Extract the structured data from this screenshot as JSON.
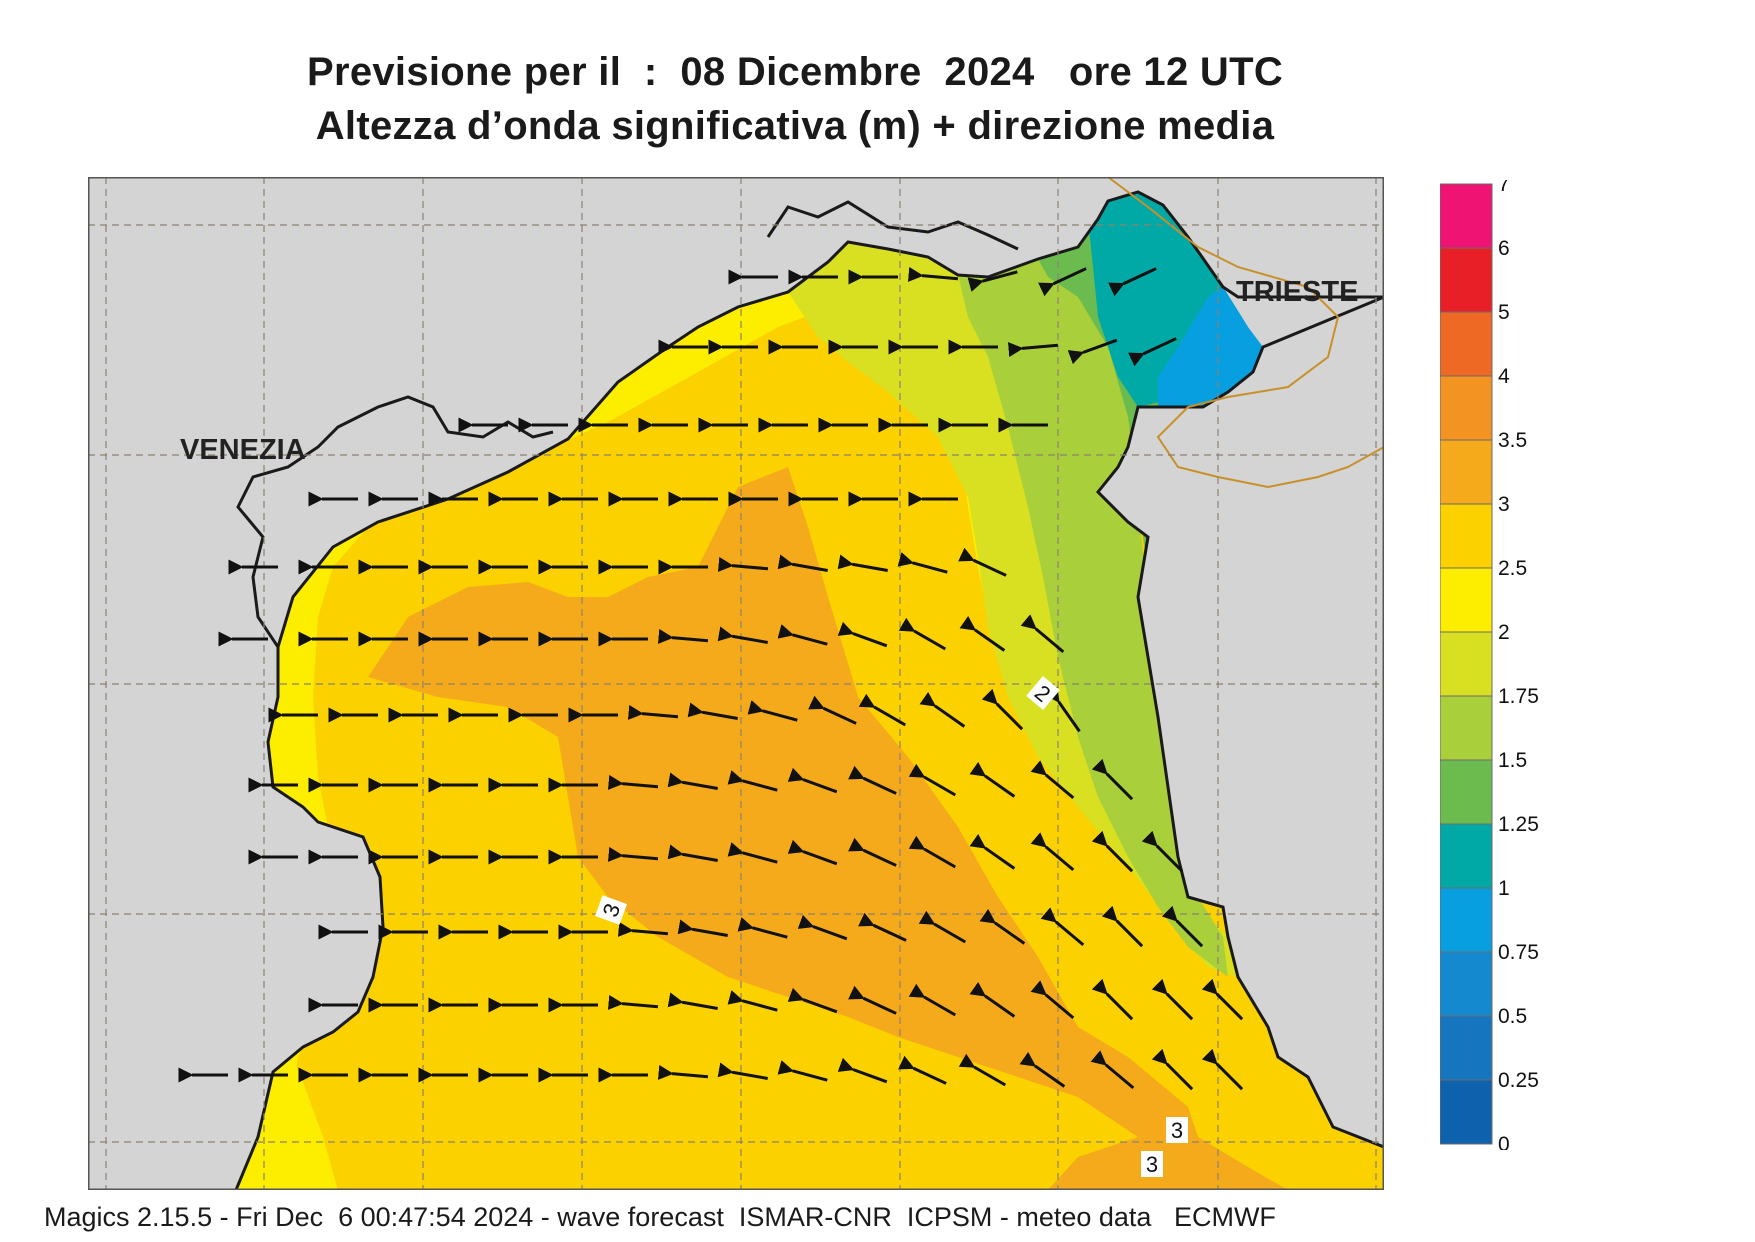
{
  "title_line1": "Previsione per il  :  08 Dicembre  2024   ore 12 UTC",
  "title_line2": "Altezza d’onda significativa (m) + direzione media",
  "cities": {
    "venezia": "VENEZIA",
    "trieste": "TRIESTE"
  },
  "legend": {
    "labels": [
      "7",
      "6",
      "5",
      "4",
      "3.5",
      "3",
      "2.5",
      "2",
      "1.75",
      "1.5",
      "1.25",
      "1",
      "0.75",
      "0.5",
      "0.25",
      "0"
    ],
    "colors": [
      "#ef1373",
      "#e81f27",
      "#ee6a24",
      "#f39321",
      "#f5aa1b",
      "#fbd100",
      "#fdee00",
      "#d8e021",
      "#a9cf3a",
      "#6cbb4f",
      "#00a9a5",
      "#079fe0",
      "#1589cf",
      "#1575be",
      "#0e62ad"
    ]
  },
  "contour_labels": [
    "2",
    "3",
    "3",
    "3"
  ],
  "colors": {
    "land": "#d4d4d4",
    "sea_default": "#fbd100",
    "coast": "#1a1a1a",
    "border": "#c8902a"
  },
  "footer": "Magics 2.15.5 - Fri Dec  6 00:47:54 2024 - wave forecast  ISMAR-CNR  ICPSM - meteo data   ECMWF"
}
